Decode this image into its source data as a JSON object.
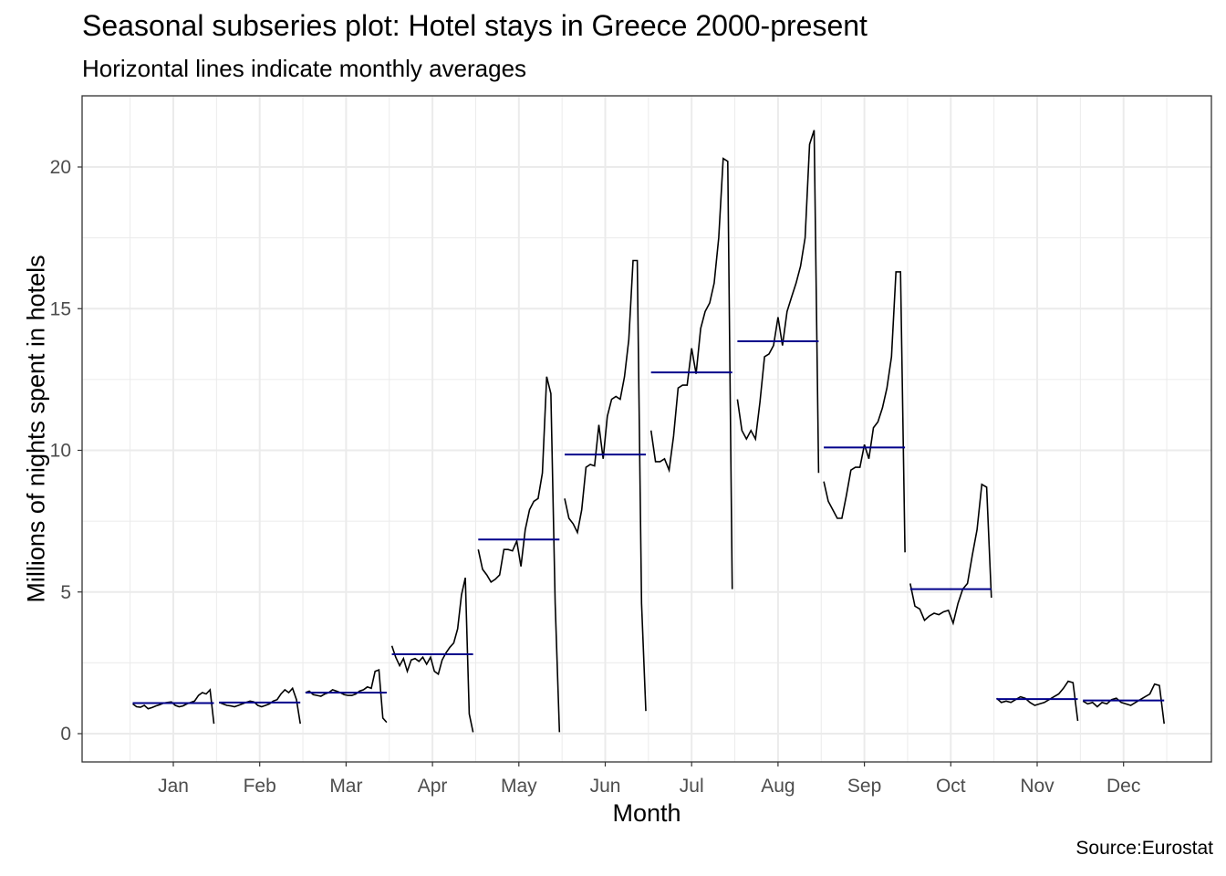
{
  "chart_data": {
    "type": "line",
    "title": "Seasonal subseries plot: Hotel stays in Greece 2000-present",
    "subtitle": "Horizontal lines indicate monthly averages",
    "xlabel": "Month",
    "ylabel": "Millions of nights spent in hotels",
    "caption": "Source:Eurostat",
    "ylim": [
      -1,
      22.5
    ],
    "yticks": [
      0,
      5,
      10,
      15,
      20
    ],
    "grid": true,
    "colors": {
      "series": "#000000",
      "mean": "#00008B",
      "grid": "#EBEBEB",
      "border": "#333333"
    },
    "categories": [
      "Jan",
      "Feb",
      "Mar",
      "Apr",
      "May",
      "Jun",
      "Jul",
      "Aug",
      "Sep",
      "Oct",
      "Nov",
      "Dec"
    ],
    "means": [
      1.08,
      1.1,
      1.45,
      2.8,
      6.85,
      9.85,
      12.75,
      13.85,
      10.1,
      5.1,
      1.22,
      1.17
    ],
    "series": [
      [
        1.05,
        0.95,
        0.93,
        1.0,
        0.88,
        0.92,
        0.98,
        1.02,
        1.08,
        1.1,
        1.12,
        1.0,
        0.95,
        0.98,
        1.05,
        1.1,
        1.15,
        1.35,
        1.45,
        1.4,
        1.55,
        0.35
      ],
      [
        1.1,
        1.05,
        1.0,
        0.98,
        0.95,
        1.0,
        1.05,
        1.1,
        1.15,
        1.12,
        1.0,
        0.95,
        1.0,
        1.05,
        1.15,
        1.2,
        1.4,
        1.55,
        1.45,
        1.6,
        1.2,
        0.35
      ],
      [
        1.45,
        1.5,
        1.38,
        1.35,
        1.32,
        1.4,
        1.45,
        1.55,
        1.5,
        1.45,
        1.38,
        1.35,
        1.35,
        1.4,
        1.5,
        1.55,
        1.65,
        1.6,
        2.2,
        2.25,
        0.55,
        0.4
      ],
      [
        3.1,
        2.7,
        2.4,
        2.65,
        2.2,
        2.6,
        2.65,
        2.55,
        2.7,
        2.45,
        2.7,
        2.2,
        2.1,
        2.6,
        2.85,
        3.05,
        3.2,
        3.7,
        4.9,
        5.5,
        0.7,
        0.05
      ],
      [
        6.5,
        5.8,
        5.6,
        5.35,
        5.45,
        5.6,
        6.5,
        6.5,
        6.45,
        6.8,
        5.9,
        7.2,
        7.9,
        8.2,
        8.3,
        9.2,
        12.6,
        12.0,
        4.6,
        0.05
      ],
      [
        8.3,
        7.6,
        7.4,
        7.1,
        7.9,
        9.4,
        9.5,
        9.45,
        10.9,
        9.7,
        11.2,
        11.8,
        11.9,
        11.8,
        12.6,
        13.9,
        16.7,
        16.7,
        4.6,
        0.8
      ],
      [
        10.7,
        9.6,
        9.6,
        9.7,
        9.3,
        10.5,
        12.2,
        12.3,
        12.3,
        13.6,
        12.7,
        14.3,
        14.9,
        15.2,
        15.9,
        17.5,
        20.3,
        20.2,
        5.1
      ],
      [
        11.8,
        10.7,
        10.4,
        10.7,
        10.4,
        11.7,
        13.3,
        13.4,
        13.7,
        14.7,
        13.7,
        14.9,
        15.4,
        15.9,
        16.5,
        17.5,
        20.8,
        21.3,
        9.2
      ],
      [
        8.9,
        8.2,
        7.9,
        7.6,
        7.6,
        8.4,
        9.3,
        9.4,
        9.4,
        10.2,
        9.7,
        10.8,
        11.0,
        11.5,
        12.2,
        13.3,
        16.3,
        16.3,
        6.4
      ],
      [
        5.3,
        4.5,
        4.4,
        4.0,
        4.15,
        4.25,
        4.2,
        4.3,
        4.35,
        3.9,
        4.6,
        5.1,
        5.3,
        6.3,
        7.2,
        8.8,
        8.7,
        4.8
      ],
      [
        1.25,
        1.1,
        1.15,
        1.1,
        1.2,
        1.3,
        1.25,
        1.1,
        1.0,
        1.05,
        1.1,
        1.2,
        1.3,
        1.4,
        1.6,
        1.85,
        1.8,
        0.45
      ],
      [
        1.15,
        1.05,
        1.1,
        0.95,
        1.1,
        1.05,
        1.2,
        1.25,
        1.1,
        1.05,
        1.0,
        1.1,
        1.2,
        1.3,
        1.4,
        1.75,
        1.7,
        0.35
      ]
    ]
  }
}
